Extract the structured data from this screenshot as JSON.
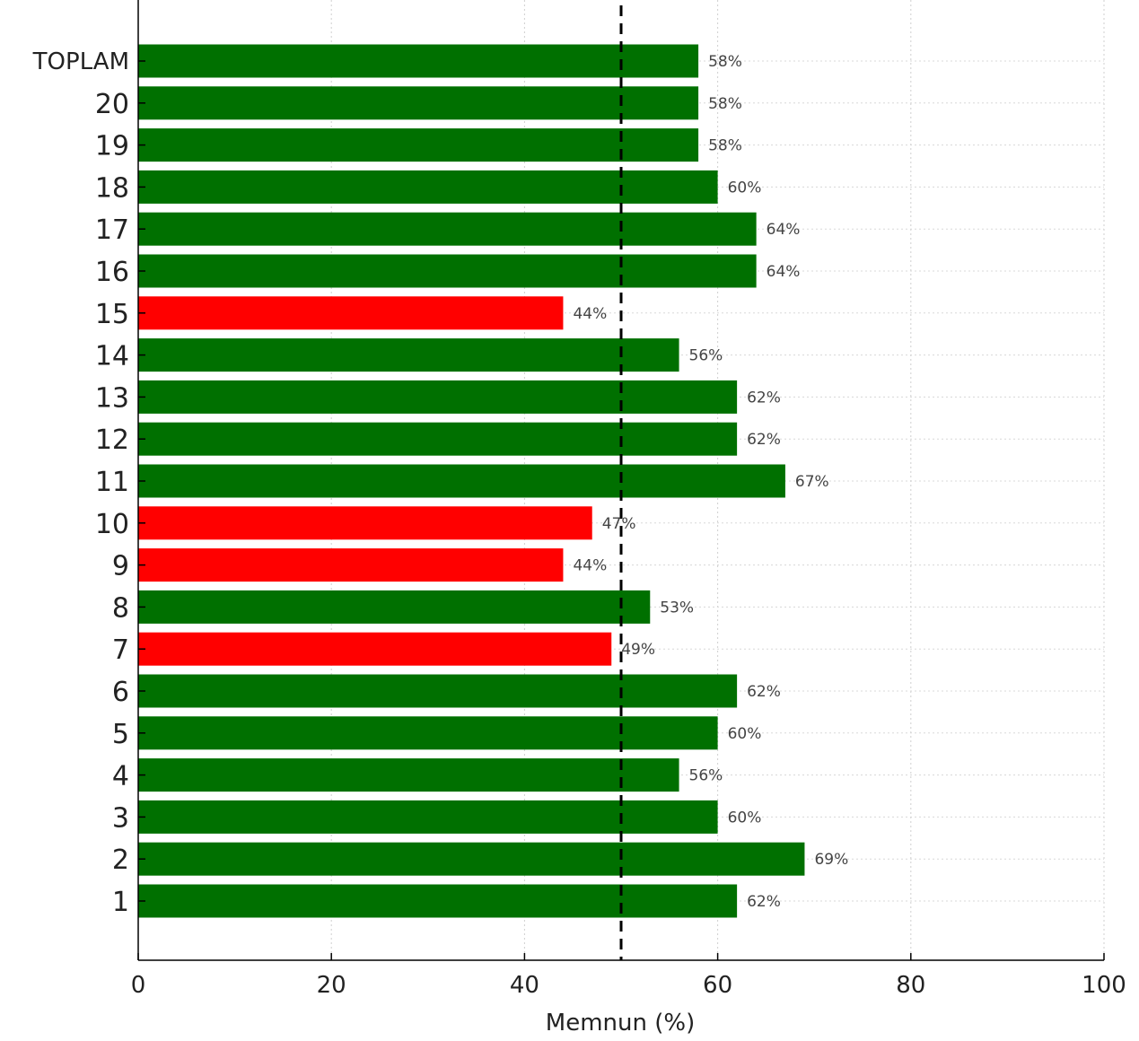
{
  "chart_data": {
    "type": "bar",
    "orientation": "horizontal",
    "categories": [
      "1",
      "2",
      "3",
      "4",
      "5",
      "6",
      "7",
      "8",
      "9",
      "10",
      "11",
      "12",
      "13",
      "14",
      "15",
      "16",
      "17",
      "18",
      "19",
      "20",
      "TOPLAM"
    ],
    "values": [
      62,
      69,
      60,
      56,
      60,
      62,
      49,
      53,
      44,
      47,
      67,
      62,
      62,
      56,
      44,
      64,
      64,
      60,
      58,
      58,
      58
    ],
    "data_labels": [
      "62%",
      "69%",
      "60%",
      "56%",
      "60%",
      "62%",
      "49%",
      "53%",
      "44%",
      "47%",
      "67%",
      "62%",
      "62%",
      "56%",
      "44%",
      "64%",
      "64%",
      "60%",
      "58%",
      "58%",
      "58%"
    ],
    "xlabel": "Memnun (%)",
    "ylabel": "",
    "xlim": [
      0,
      100
    ],
    "xticks": [
      0,
      20,
      40,
      60,
      80,
      100
    ],
    "reference_line": {
      "value": 50,
      "style": "dashed",
      "color": "#000000"
    },
    "threshold": 50,
    "colors": {
      "above_threshold": "#007000",
      "below_threshold": "#ff0000"
    },
    "grid": true,
    "legend": "none"
  }
}
